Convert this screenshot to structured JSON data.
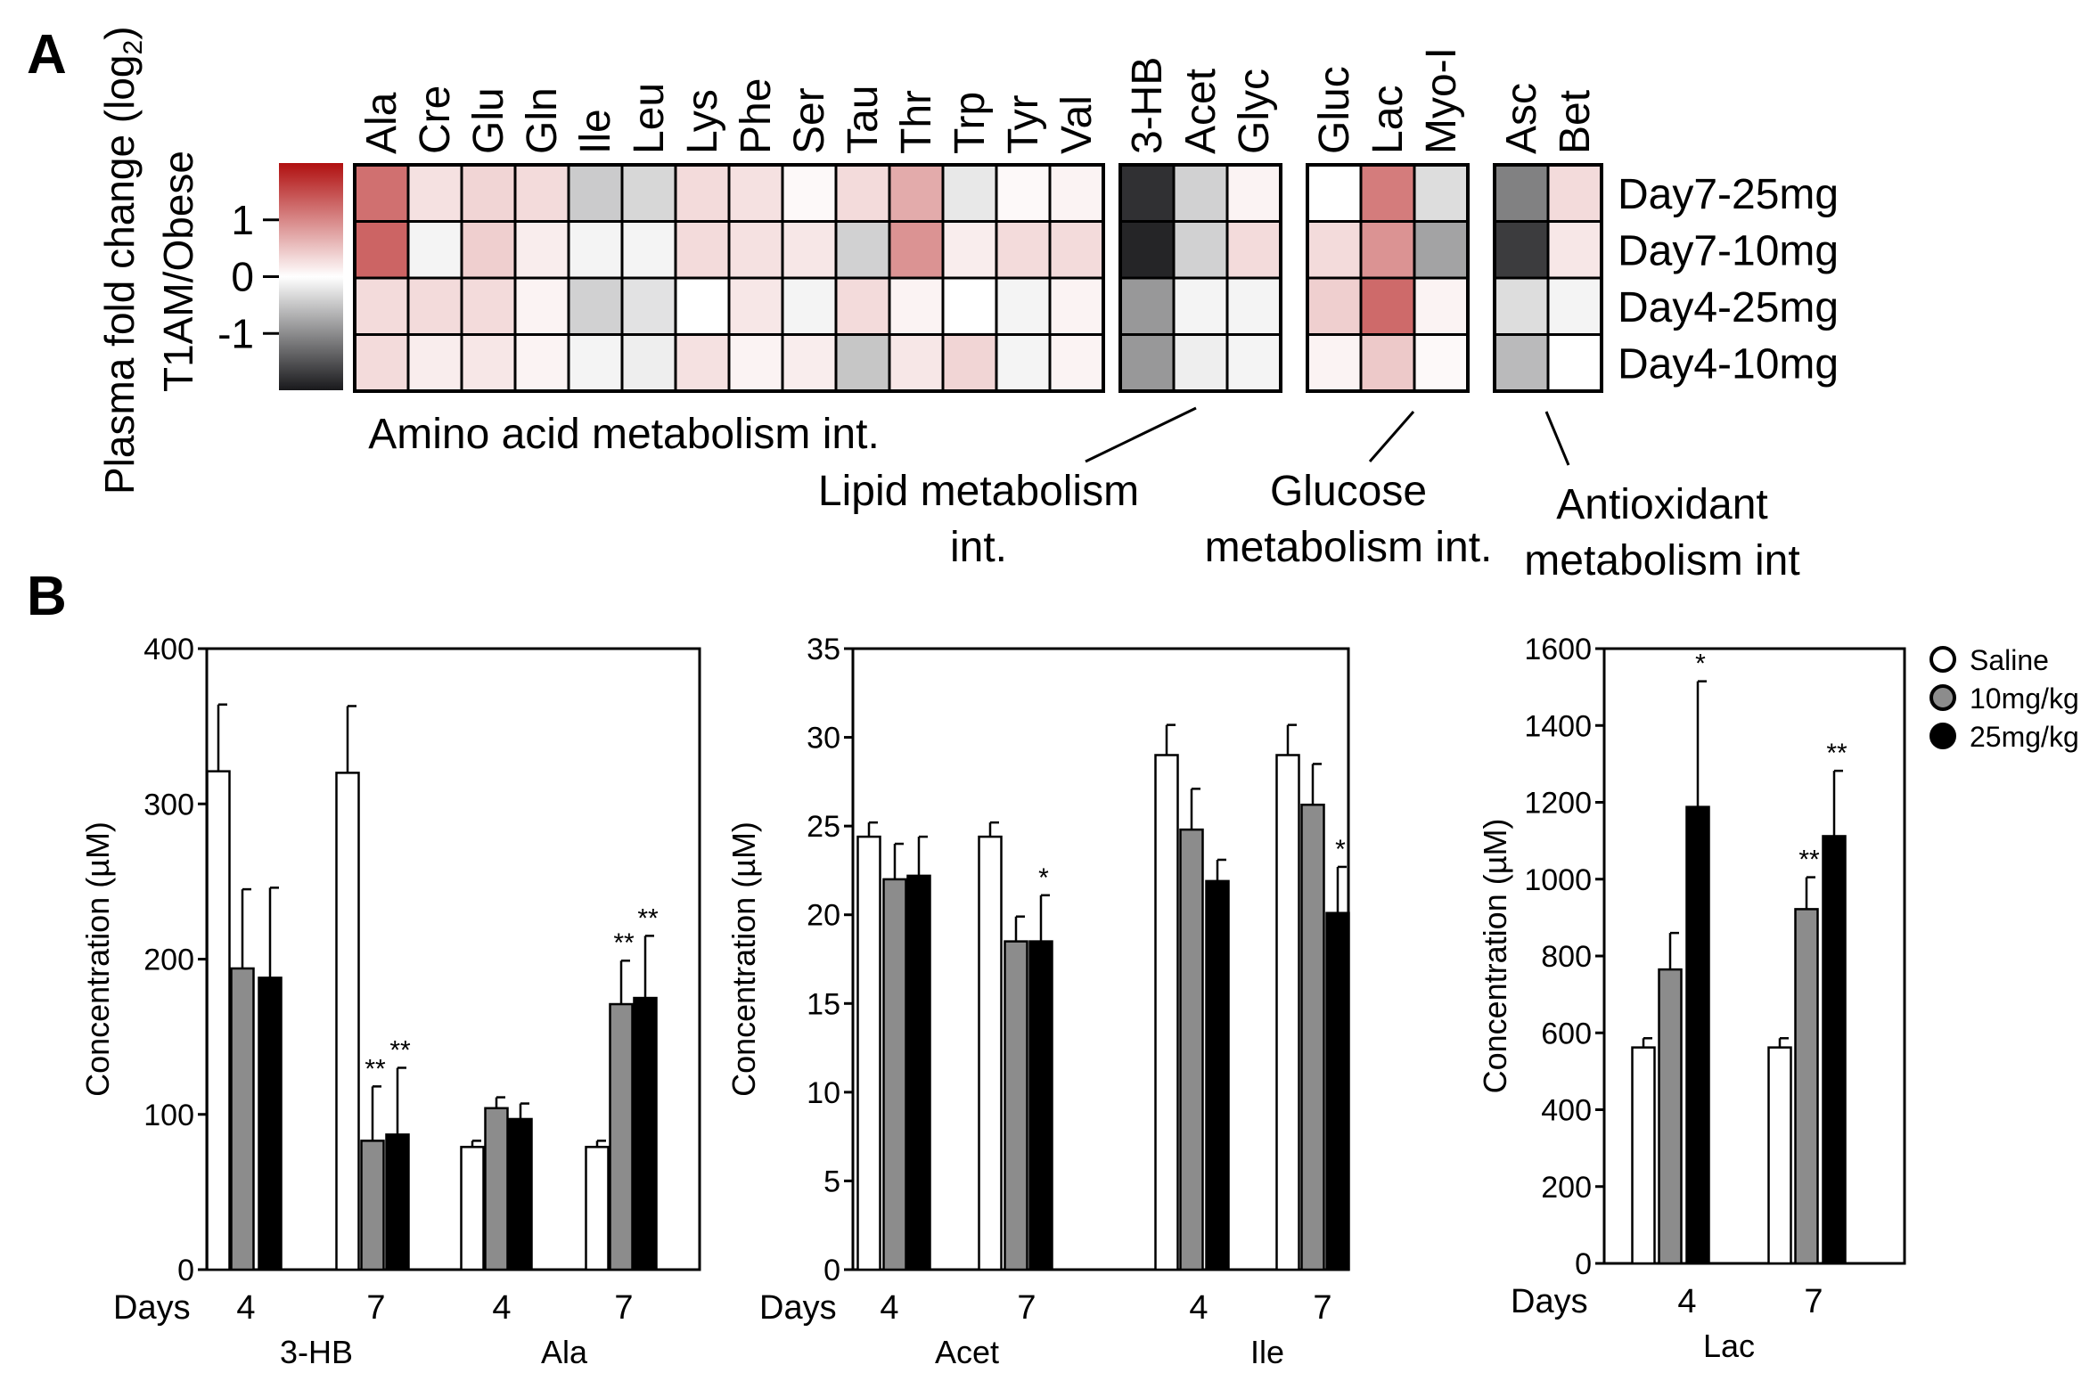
{
  "panel_labels": [
    "A",
    "B"
  ],
  "heatmap": {
    "colorbar": {
      "title_lines": [
        "Plasma fold change (log",
        "2",
        ")",
        "T1AM/Obese"
      ],
      "ticks": [
        "1",
        "0",
        "-1"
      ]
    },
    "rows": [
      "Day7-25mg",
      "Day7-10mg",
      "Day4-25mg",
      "Day4-10mg"
    ],
    "groups": [
      {
        "label_lines": [
          "Amino acid metabolism int."
        ],
        "columns": [
          "Ala",
          "Cre",
          "Glu",
          "Gln",
          "Ile",
          "Leu",
          "Lys",
          "Phe",
          "Ser",
          "Tau",
          "Thr",
          "Trp",
          "Tyr",
          "Val"
        ],
        "values": [
          [
            1.2,
            0.25,
            0.35,
            0.3,
            -0.45,
            -0.35,
            0.3,
            0.25,
            0.05,
            0.3,
            0.7,
            -0.2,
            0.05,
            0.1
          ],
          [
            1.3,
            -0.1,
            0.4,
            0.15,
            -0.1,
            -0.1,
            0.3,
            0.25,
            0.2,
            -0.4,
            0.9,
            0.15,
            0.3,
            0.3
          ],
          [
            0.3,
            0.3,
            0.3,
            0.1,
            -0.4,
            -0.25,
            0.0,
            0.2,
            -0.1,
            0.3,
            0.1,
            0.0,
            -0.1,
            0.1
          ],
          [
            0.3,
            0.15,
            0.2,
            0.1,
            -0.1,
            -0.15,
            0.25,
            0.1,
            0.15,
            -0.5,
            0.2,
            0.35,
            -0.1,
            0.1
          ]
        ]
      },
      {
        "label_lines": [
          "Lipid metabolism",
          "int."
        ],
        "columns": [
          "3-HB",
          "Acet",
          "Glyc"
        ],
        "values": [
          [
            -1.8,
            -0.4,
            0.1
          ],
          [
            -1.9,
            -0.4,
            0.3
          ],
          [
            -0.9,
            -0.1,
            -0.1
          ],
          [
            -0.9,
            -0.15,
            -0.1
          ]
        ]
      },
      {
        "label_lines": [
          "Glucose",
          "metabolism int."
        ],
        "columns": [
          "Gluc",
          "Lac",
          "Myo-I"
        ],
        "values": [
          [
            0.0,
            1.1,
            -0.3
          ],
          [
            0.3,
            0.9,
            -0.8
          ],
          [
            0.4,
            1.25,
            0.1
          ],
          [
            0.1,
            0.45,
            0.05
          ]
        ]
      },
      {
        "label_lines": [
          "Antioxidant",
          "metabolism int"
        ],
        "columns": [
          "Asc",
          "Bet"
        ],
        "values": [
          [
            -1.1,
            0.3
          ],
          [
            -1.7,
            0.2
          ],
          [
            -0.3,
            -0.1
          ],
          [
            -0.6,
            0.0
          ]
        ]
      }
    ]
  },
  "legend": {
    "entries": [
      {
        "label": "Saline",
        "color": "#ffffff"
      },
      {
        "label": "10mg/kg",
        "color": "#8c8c8c"
      },
      {
        "label": "25mg/kg",
        "color": "#000000"
      }
    ]
  },
  "chart_data": [
    {
      "type": "bar",
      "ylabel": "Concentration (µM)",
      "ylim": [
        0,
        400
      ],
      "yticks": [
        0,
        100,
        200,
        300,
        400
      ],
      "days_label": "Days",
      "groups": [
        {
          "metabolite": "3-HB",
          "days": [
            "4",
            "7"
          ]
        },
        {
          "metabolite": "Ala",
          "days": [
            "4",
            "7"
          ]
        }
      ],
      "series": [
        {
          "name": "Saline",
          "values": [
            321,
            320,
            79,
            79
          ],
          "errors": [
            43,
            43,
            4,
            4
          ],
          "sig": [
            "",
            "",
            "",
            ""
          ]
        },
        {
          "name": "10mg/kg",
          "values": [
            194,
            83,
            104,
            171
          ],
          "errors": [
            51,
            35,
            7,
            28
          ],
          "sig": [
            "",
            "**",
            "",
            "**"
          ]
        },
        {
          "name": "25mg/kg",
          "values": [
            188,
            87,
            97,
            175
          ],
          "errors": [
            58,
            43,
            10,
            40
          ],
          "sig": [
            "",
            "**",
            "",
            "**"
          ]
        }
      ]
    },
    {
      "type": "bar",
      "ylabel": "Concentration (µM)",
      "ylim": [
        0,
        35
      ],
      "yticks": [
        0,
        5,
        10,
        15,
        20,
        25,
        30,
        35
      ],
      "days_label": "Days",
      "groups": [
        {
          "metabolite": "Acet",
          "days": [
            "4",
            "7"
          ]
        },
        {
          "metabolite": "Ile",
          "days": [
            "4",
            "7"
          ]
        }
      ],
      "series": [
        {
          "name": "Saline",
          "values": [
            24.4,
            24.4,
            29.0,
            29.0
          ],
          "errors": [
            0.8,
            0.8,
            1.7,
            1.7
          ],
          "sig": [
            "",
            "",
            "",
            ""
          ]
        },
        {
          "name": "10mg/kg",
          "values": [
            22.0,
            18.5,
            24.8,
            26.2
          ],
          "errors": [
            2.0,
            1.4,
            2.3,
            2.3
          ],
          "sig": [
            "",
            "",
            "",
            ""
          ]
        },
        {
          "name": "25mg/kg",
          "values": [
            22.2,
            18.5,
            21.9,
            20.1
          ],
          "errors": [
            2.2,
            2.6,
            1.2,
            2.6
          ],
          "sig": [
            "",
            "*",
            "",
            "*"
          ]
        }
      ]
    },
    {
      "type": "bar",
      "ylabel": "Concentration (µM)",
      "ylim": [
        0,
        1600
      ],
      "yticks": [
        0,
        200,
        400,
        600,
        800,
        1000,
        1200,
        1400,
        1600
      ],
      "days_label": "Days",
      "groups": [
        {
          "metabolite": "Lac",
          "days": [
            "4",
            "7"
          ]
        }
      ],
      "series": [
        {
          "name": "Saline",
          "values": [
            562,
            562
          ],
          "errors": [
            24,
            24
          ],
          "sig": [
            "",
            ""
          ]
        },
        {
          "name": "10mg/kg",
          "values": [
            765,
            922
          ],
          "errors": [
            95,
            83
          ],
          "sig": [
            "",
            "**"
          ]
        },
        {
          "name": "25mg/kg",
          "values": [
            1188,
            1112
          ],
          "errors": [
            327,
            170
          ],
          "sig": [
            "*",
            "**"
          ]
        }
      ]
    }
  ]
}
